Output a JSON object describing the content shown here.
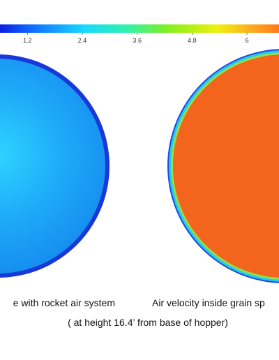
{
  "colorbar": {
    "range": [
      0.6,
      6.7
    ],
    "ticks": [
      1.2,
      2.4,
      3.6,
      4.8,
      6
    ]
  },
  "captions": {
    "left": "e with rocket air system",
    "right": "Air velocity inside grain sp",
    "bottom": "( at height 16.4’ from base of hopper)"
  }
}
